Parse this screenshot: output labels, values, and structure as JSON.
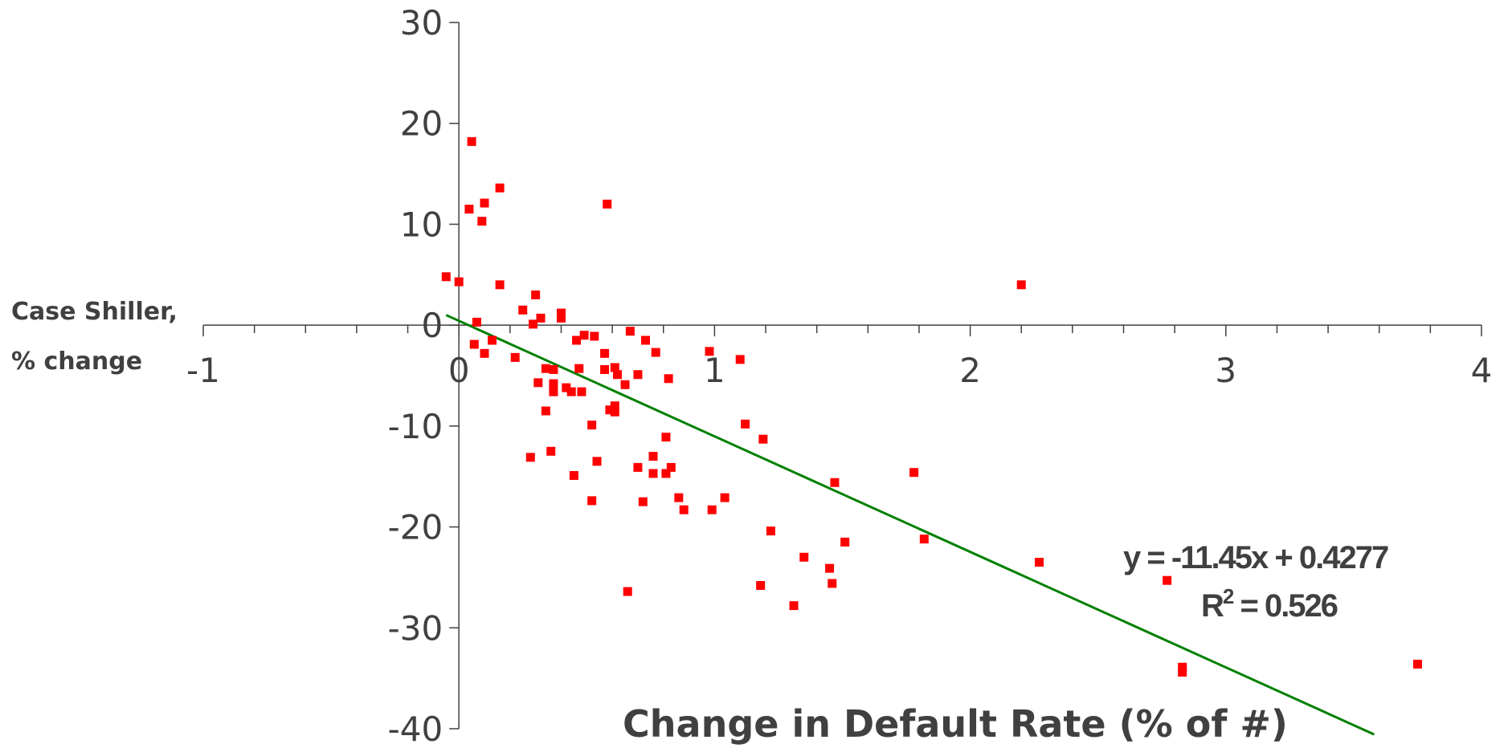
{
  "chart_data": {
    "type": "scatter",
    "title": "",
    "ylabel_line1": "Case Shiller,",
    "ylabel_line2": "% change",
    "xlabel": "Change in Default Rate (% of #)",
    "xlim": [
      -1,
      4
    ],
    "ylim": [
      -40,
      30
    ],
    "x_ticks": [
      -1,
      0,
      1,
      2,
      3,
      4
    ],
    "y_ticks": [
      30,
      20,
      10,
      0,
      -10,
      -20,
      -30,
      -40
    ],
    "x_tick_labels": [
      "-1",
      "0",
      "1",
      "2",
      "3",
      "4"
    ],
    "y_tick_labels": [
      "30",
      "20",
      "10",
      "0",
      "-10",
      "-20",
      "-30",
      "-40"
    ],
    "grid": false,
    "colors": {
      "points": "#ff0000",
      "trendline": "#008000",
      "axis": "#404040"
    },
    "series": [
      {
        "points": [
          [
            -0.05,
            4.8
          ],
          [
            0.0,
            4.3
          ],
          [
            0.05,
            18.2
          ],
          [
            0.04,
            11.5
          ],
          [
            0.1,
            12.1
          ],
          [
            0.09,
            10.3
          ],
          [
            0.16,
            13.6
          ],
          [
            0.58,
            12.0
          ],
          [
            0.16,
            4.0
          ],
          [
            2.2,
            4.0
          ],
          [
            0.3,
            3.0
          ],
          [
            0.25,
            1.5
          ],
          [
            0.32,
            0.7
          ],
          [
            0.4,
            1.2
          ],
          [
            0.4,
            0.7
          ],
          [
            0.07,
            0.3
          ],
          [
            0.29,
            0.1
          ],
          [
            0.06,
            -1.9
          ],
          [
            0.13,
            -1.5
          ],
          [
            0.1,
            -2.8
          ],
          [
            0.22,
            -3.2
          ],
          [
            0.46,
            -1.5
          ],
          [
            0.53,
            -1.1
          ],
          [
            0.49,
            -1.0
          ],
          [
            0.67,
            -0.6
          ],
          [
            0.73,
            -1.5
          ],
          [
            0.77,
            -2.7
          ],
          [
            0.98,
            -2.6
          ],
          [
            1.1,
            -3.4
          ],
          [
            0.57,
            -2.8
          ],
          [
            0.34,
            -4.3
          ],
          [
            0.37,
            -4.4
          ],
          [
            0.47,
            -4.3
          ],
          [
            0.57,
            -4.4
          ],
          [
            0.61,
            -4.2
          ],
          [
            0.7,
            -4.9
          ],
          [
            0.62,
            -4.9
          ],
          [
            0.31,
            -5.7
          ],
          [
            0.37,
            -5.8
          ],
          [
            0.42,
            -6.2
          ],
          [
            0.37,
            -6.6
          ],
          [
            0.44,
            -6.6
          ],
          [
            0.48,
            -6.6
          ],
          [
            0.65,
            -5.9
          ],
          [
            0.82,
            -5.3
          ],
          [
            0.61,
            -8.0
          ],
          [
            0.59,
            -8.4
          ],
          [
            0.61,
            -8.6
          ],
          [
            0.34,
            -8.5
          ],
          [
            0.52,
            -9.9
          ],
          [
            1.12,
            -9.8
          ],
          [
            1.19,
            -11.3
          ],
          [
            0.81,
            -11.1
          ],
          [
            0.28,
            -13.1
          ],
          [
            0.36,
            -12.5
          ],
          [
            0.54,
            -13.5
          ],
          [
            0.76,
            -13.0
          ],
          [
            0.45,
            -14.9
          ],
          [
            0.7,
            -14.1
          ],
          [
            0.76,
            -14.7
          ],
          [
            0.81,
            -14.7
          ],
          [
            0.83,
            -14.1
          ],
          [
            0.52,
            -17.4
          ],
          [
            0.72,
            -17.5
          ],
          [
            0.86,
            -17.1
          ],
          [
            1.04,
            -17.1
          ],
          [
            0.88,
            -18.3
          ],
          [
            0.99,
            -18.3
          ],
          [
            1.47,
            -15.6
          ],
          [
            1.78,
            -14.6
          ],
          [
            1.22,
            -20.4
          ],
          [
            1.51,
            -21.5
          ],
          [
            1.82,
            -21.2
          ],
          [
            1.35,
            -23.0
          ],
          [
            1.45,
            -24.1
          ],
          [
            1.46,
            -25.6
          ],
          [
            1.18,
            -25.8
          ],
          [
            0.66,
            -26.4
          ],
          [
            1.31,
            -27.8
          ],
          [
            2.27,
            -23.5
          ],
          [
            2.77,
            -25.3
          ],
          [
            2.83,
            -33.9
          ],
          [
            2.83,
            -34.4
          ],
          [
            3.75,
            -33.6
          ]
        ]
      }
    ],
    "trendline": {
      "slope": -11.45,
      "intercept": 0.4277,
      "x_range": [
        -0.05,
        3.58
      ],
      "equation": "y = -11.45x + 0.4277",
      "r2_prefix": "R",
      "r2_sup": "2",
      "r2_suffix": " = 0.526"
    }
  }
}
